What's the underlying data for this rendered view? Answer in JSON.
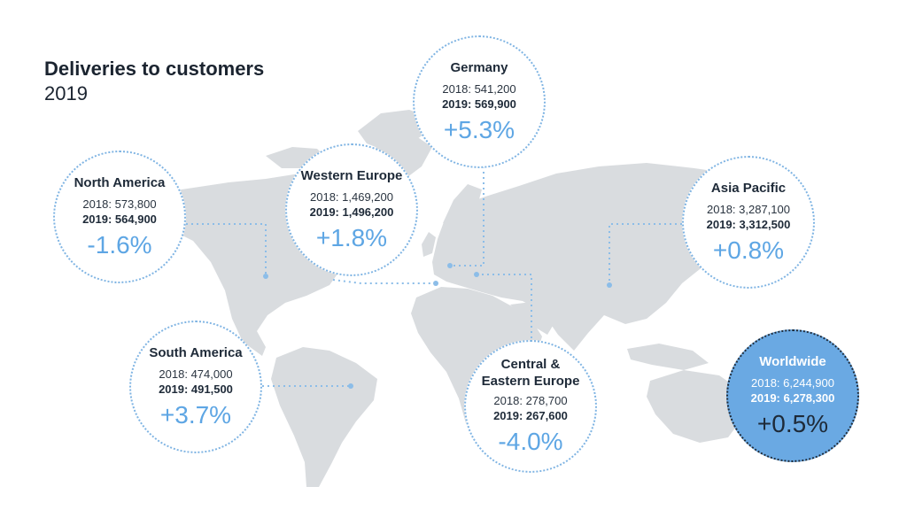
{
  "title": "Deliveries to customers",
  "subtitle": "2019",
  "colors": {
    "land": "#d9dcdf",
    "accent": "#5ea6e4",
    "connector": "#8cbde8",
    "worldwide_fill": "#6aa9e3",
    "text_dark": "#1e2a38"
  },
  "regions": [
    {
      "id": "north-america",
      "name": "North America",
      "y2018": "2018: 573,800",
      "y2019": "2019: 564,900",
      "change": "-1.6%"
    },
    {
      "id": "western-europe",
      "name": "Western Europe",
      "y2018": "2018: 1,469,200",
      "y2019": "2019: 1,496,200",
      "change": "+1.8%"
    },
    {
      "id": "germany",
      "name": "Germany",
      "y2018": "2018: 541,200",
      "y2019": "2019: 569,900",
      "change": "+5.3%"
    },
    {
      "id": "asia-pacific",
      "name": "Asia Pacific",
      "y2018": "2018: 3,287,100",
      "y2019": "2019: 3,312,500",
      "change": "+0.8%"
    },
    {
      "id": "south-america",
      "name": "South America",
      "y2018": "2018: 474,000",
      "y2019": "2019: 491,500",
      "change": "+3.7%"
    },
    {
      "id": "central-eastern-europe",
      "name": "Central &\nEastern Europe",
      "y2018": "2018: 278,700",
      "y2019": "2019: 267,600",
      "change": "-4.0%"
    },
    {
      "id": "worldwide",
      "name": "Worldwide",
      "y2018": "2018: 6,244,900",
      "y2019": "2019: 6,278,300",
      "change": "+0.5%"
    }
  ]
}
